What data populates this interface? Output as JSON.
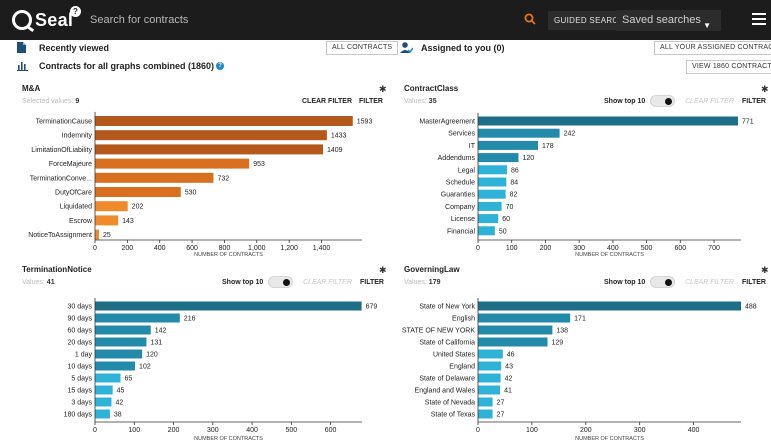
{
  "app": {
    "logo_text": "Seal",
    "search_placeholder": "Search for contracts",
    "guided_search_label": "GUIDED SEARCH",
    "saved_searches_label": "Saved searches"
  },
  "sections": {
    "recently_viewed_label": "Recently viewed",
    "all_contracts_button": "ALL CONTRACTS",
    "assigned_label": "Assigned to you (0)",
    "all_assigned_button": "ALL YOUR ASSIGNED CONTRACTS",
    "combined_label": "Contracts for all graphs combined (1860)",
    "view_button": "VIEW 1860 CONTRACTS"
  },
  "colors": {
    "orange_dark": "#b5581c",
    "orange_mid": "#d9701f",
    "orange_light": "#f08a2a",
    "teal_dark": "#1f6e88",
    "teal_mid": "#238ba9",
    "teal_light": "#2eb2d8"
  },
  "panels": [
    {
      "title": "M&A",
      "values_label": "Selected values:",
      "values_count": "9",
      "clear_filter": "CLEAR FILTER",
      "filter": "FILTER",
      "show_top": "",
      "xlabel": "NUMBER OF CONTRACTS"
    },
    {
      "title": "ContractClass",
      "values_label": "Values:",
      "values_count": "35",
      "clear_filter": "CLEAR FILTER",
      "filter": "FILTER",
      "show_top": "Show top 10",
      "xlabel": "NUMBER OF CONTRACTS"
    },
    {
      "title": "TerminationNotice",
      "values_label": "Values:",
      "values_count": "41",
      "clear_filter": "CLEAR FILTER",
      "filter": "FILTER",
      "show_top": "Show top 10",
      "xlabel": "NUMBER OF CONTRACTS"
    },
    {
      "title": "GoverningLaw",
      "values_label": "Values:",
      "values_count": "179",
      "clear_filter": "CLEAR FILTER",
      "filter": "FILTER",
      "show_top": "Show top 10",
      "xlabel": "NUMBER OF CONTRACTS"
    }
  ],
  "chart_data": [
    {
      "type": "bar",
      "orientation": "horizontal",
      "title": "M&A",
      "categories": [
        "TerminationCause",
        "Indemnity",
        "LimitationOfLiability",
        "ForceMajeure",
        "TerminationConve...",
        "DutyOfCare",
        "Liquidated",
        "Escrow",
        "NoticeToAssignment"
      ],
      "values": [
        1593,
        1433,
        1409,
        953,
        732,
        530,
        202,
        143,
        25
      ],
      "xlabel": "NUMBER OF CONTRACTS",
      "xlim": [
        0,
        1650
      ],
      "xticks": [
        0,
        200,
        400,
        600,
        800,
        1000,
        1200,
        1400
      ],
      "xtick_labels": [
        "0",
        "200",
        "400",
        "600",
        "800",
        "1,000",
        "1,200",
        "1,400"
      ],
      "palette": "orange"
    },
    {
      "type": "bar",
      "orientation": "horizontal",
      "title": "ContractClass",
      "categories": [
        "MasterAgreement",
        "Services",
        "IT",
        "Addendums",
        "Legal",
        "Schedule",
        "Guaranties",
        "Company",
        "License",
        "Financial"
      ],
      "values": [
        771,
        242,
        178,
        120,
        86,
        84,
        82,
        70,
        60,
        50
      ],
      "xlabel": "NUMBER OF CONTRACTS",
      "xlim": [
        0,
        780
      ],
      "xticks": [
        0,
        100,
        200,
        300,
        400,
        500,
        600,
        700
      ],
      "xtick_labels": [
        "0",
        "100",
        "200",
        "300",
        "400",
        "500",
        "600",
        "700"
      ],
      "palette": "teal"
    },
    {
      "type": "bar",
      "orientation": "horizontal",
      "title": "TerminationNotice",
      "categories": [
        "30 days",
        "90 days",
        "60 days",
        "20 days",
        "1 day",
        "10 days",
        "5 days",
        "15 days",
        "3 days",
        "180 days"
      ],
      "values": [
        679,
        216,
        142,
        131,
        120,
        102,
        65,
        45,
        42,
        38
      ],
      "xlabel": "NUMBER OF CONTRACTS",
      "xlim": [
        0,
        680
      ],
      "xticks": [
        0,
        100,
        200,
        300,
        400,
        500,
        600
      ],
      "xtick_labels": [
        "0",
        "100",
        "200",
        "300",
        "400",
        "500",
        "600"
      ],
      "palette": "teal"
    },
    {
      "type": "bar",
      "orientation": "horizontal",
      "title": "GoverningLaw",
      "categories": [
        "State of New York",
        "English",
        "STATE OF NEW YORK",
        "State of California",
        "United States",
        "England",
        "State of Delaware",
        "England and Wales",
        "State of Nevada",
        "State of Texas"
      ],
      "values": [
        488,
        171,
        138,
        129,
        46,
        43,
        42,
        41,
        27,
        27
      ],
      "xlabel": "NUMBER OF CONTRACTS",
      "xlim": [
        0,
        488
      ],
      "xticks": [
        0,
        100,
        200,
        300,
        400
      ],
      "xtick_labels": [
        "0",
        "100",
        "200",
        "300",
        "400"
      ],
      "palette": "teal"
    }
  ]
}
